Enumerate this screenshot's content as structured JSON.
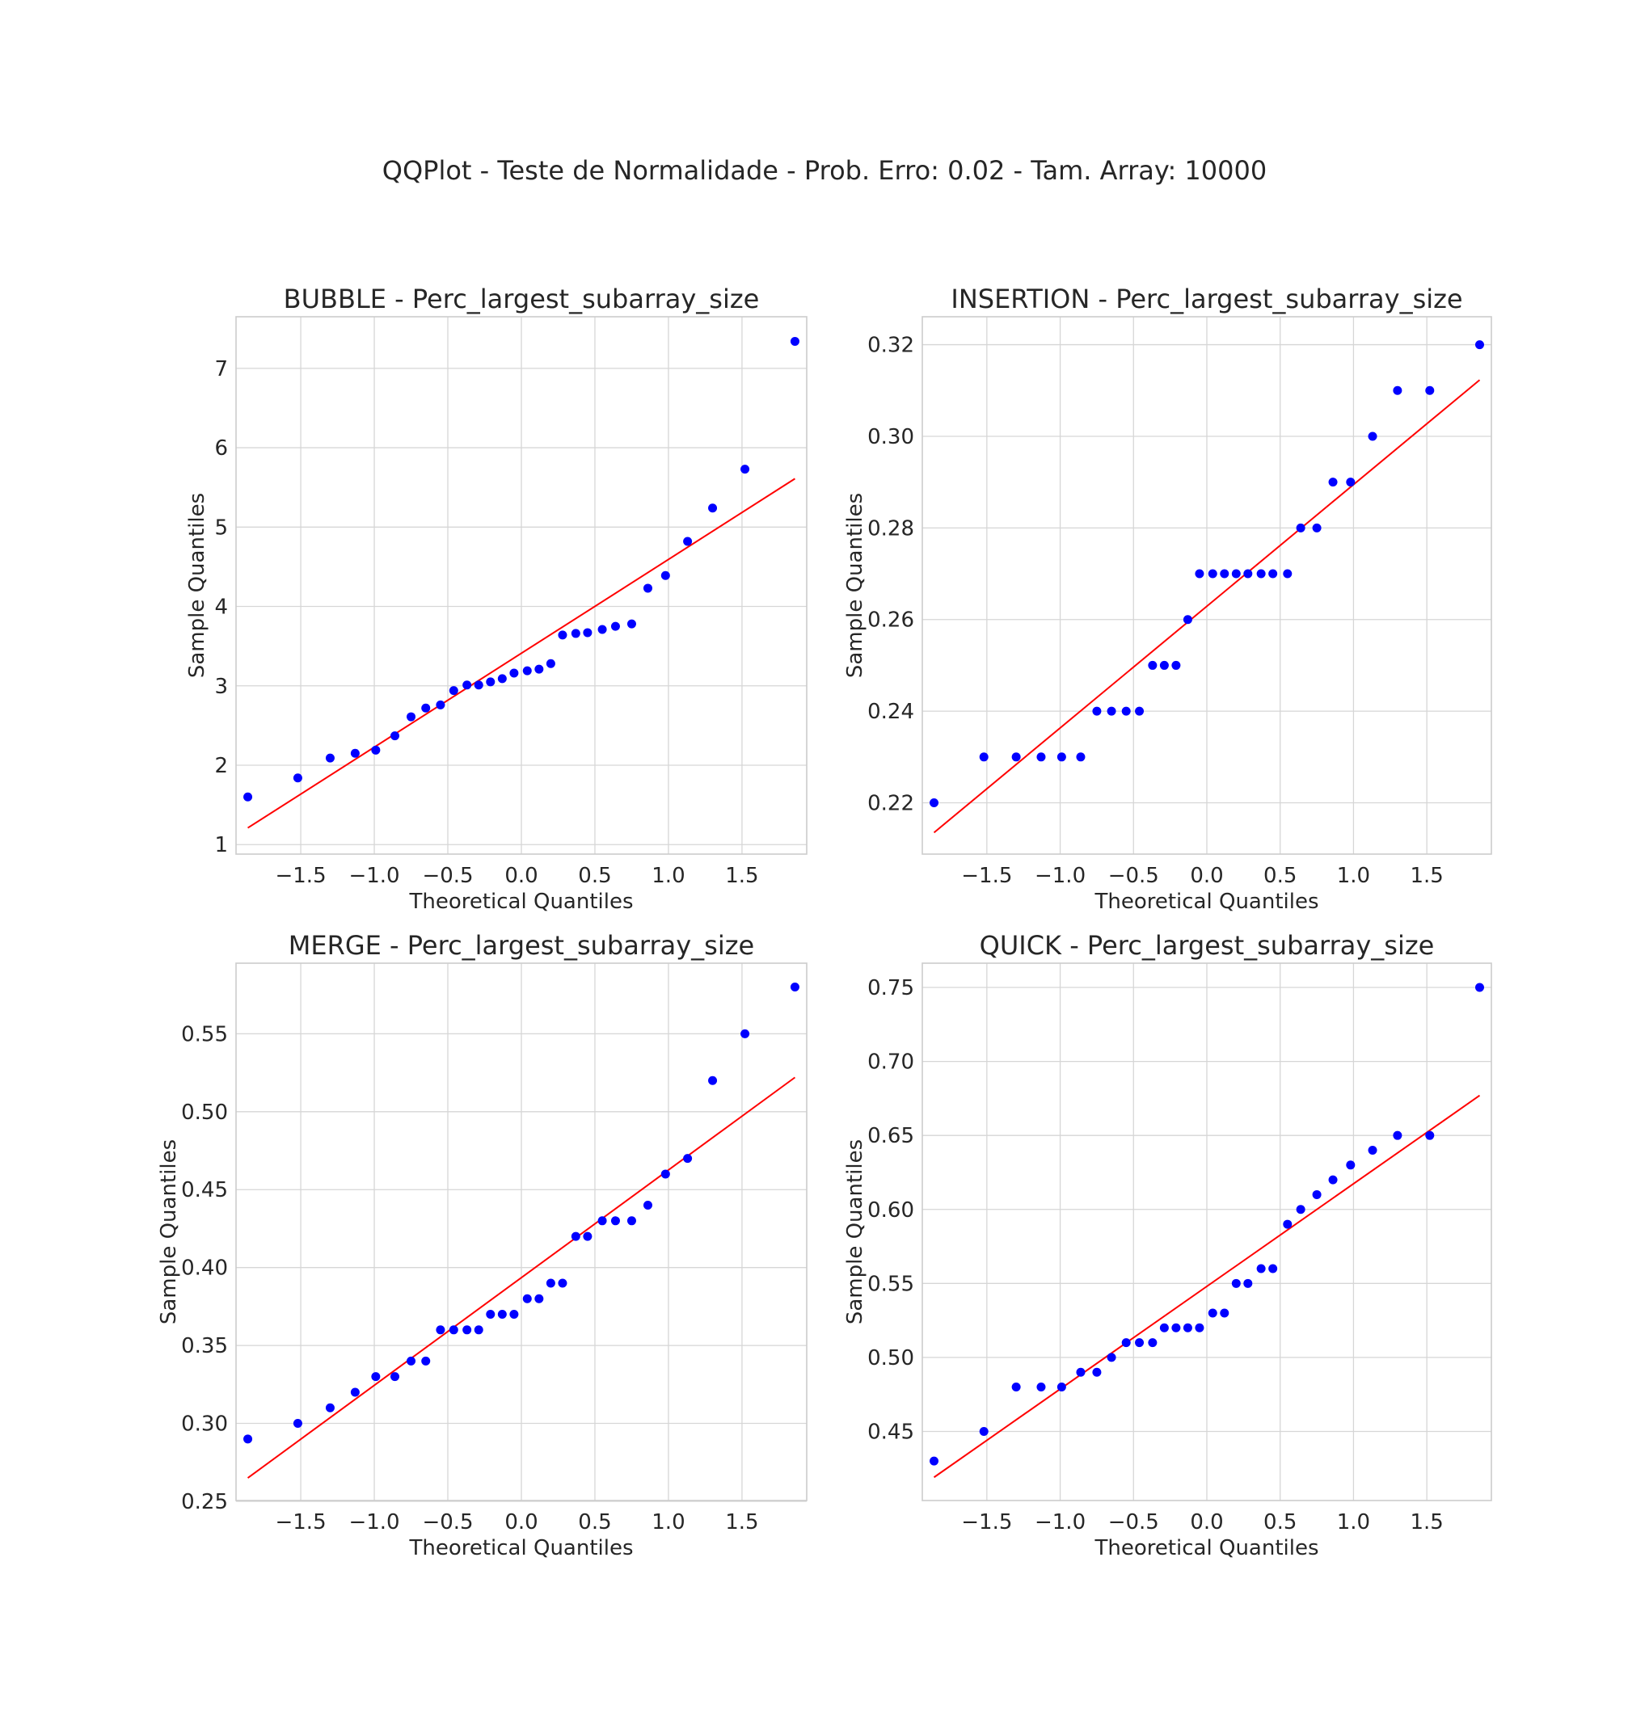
{
  "figure": {
    "title": "QQPlot - Teste de Normalidade - Prob. Erro: 0.02 - Tam. Array: 10000"
  },
  "colors": {
    "points": "#0000ff",
    "line": "#ff0000",
    "grid": "#d6d6d6",
    "axes": "#cccccc",
    "text": "#262626"
  },
  "chart_data": [
    {
      "type": "scatter",
      "title": "BUBBLE - Perc_largest_subarray_size",
      "xlabel": "Theoretical Quantiles",
      "ylabel": "Sample Quantiles",
      "xlim": [
        -1.94,
        1.94
      ],
      "ylim": [
        0.88,
        7.65
      ],
      "xticks": [
        -1.5,
        -1.0,
        -0.5,
        0.0,
        0.5,
        1.0,
        1.5
      ],
      "xtick_labels": [
        "−1.5",
        "−1.0",
        "−0.5",
        "0.0",
        "0.5",
        "1.0",
        "1.5"
      ],
      "yticks": [
        1,
        2,
        3,
        4,
        5,
        6,
        7
      ],
      "ytick_labels": [
        "1",
        "2",
        "3",
        "4",
        "5",
        "6",
        "7"
      ],
      "grid": true,
      "x": [
        -1.86,
        -1.52,
        -1.3,
        -1.13,
        -0.99,
        -0.86,
        -0.75,
        -0.65,
        -0.55,
        -0.46,
        -0.37,
        -0.29,
        -0.21,
        -0.13,
        -0.05,
        0.04,
        0.12,
        0.2,
        0.28,
        0.37,
        0.45,
        0.55,
        0.64,
        0.75,
        0.86,
        0.98,
        1.13,
        1.3,
        1.52,
        1.86
      ],
      "y": [
        1.6,
        1.84,
        2.09,
        2.15,
        2.19,
        2.37,
        2.61,
        2.72,
        2.76,
        2.94,
        3.01,
        3.01,
        3.05,
        3.09,
        3.16,
        3.19,
        3.21,
        3.28,
        3.64,
        3.66,
        3.67,
        3.71,
        3.75,
        3.78,
        4.23,
        4.39,
        4.82,
        5.24,
        5.73,
        7.34
      ],
      "fit_line": {
        "x": [
          -1.86,
          1.86
        ],
        "y": [
          1.21,
          5.61
        ]
      }
    },
    {
      "type": "scatter",
      "title": "INSERTION - Perc_largest_subarray_size",
      "xlabel": "Theoretical Quantiles",
      "ylabel": "Sample Quantiles",
      "xlim": [
        -1.94,
        1.94
      ],
      "ylim": [
        0.2088,
        0.3261
      ],
      "xticks": [
        -1.5,
        -1.0,
        -0.5,
        0.0,
        0.5,
        1.0,
        1.5
      ],
      "xtick_labels": [
        "−1.5",
        "−1.0",
        "−0.5",
        "0.0",
        "0.5",
        "1.0",
        "1.5"
      ],
      "yticks": [
        0.22,
        0.24,
        0.26,
        0.28,
        0.3,
        0.32
      ],
      "ytick_labels": [
        "0.22",
        "0.24",
        "0.26",
        "0.28",
        "0.30",
        "0.32"
      ],
      "grid": true,
      "x": [
        -1.86,
        -1.52,
        -1.3,
        -1.13,
        -0.99,
        -0.86,
        -0.75,
        -0.65,
        -0.55,
        -0.46,
        -0.37,
        -0.29,
        -0.21,
        -0.13,
        -0.05,
        0.04,
        0.12,
        0.2,
        0.28,
        0.37,
        0.45,
        0.55,
        0.64,
        0.75,
        0.86,
        0.98,
        1.13,
        1.3,
        1.52,
        1.86
      ],
      "y": [
        0.22,
        0.23,
        0.23,
        0.23,
        0.23,
        0.23,
        0.24,
        0.24,
        0.24,
        0.24,
        0.25,
        0.25,
        0.25,
        0.26,
        0.27,
        0.27,
        0.27,
        0.27,
        0.27,
        0.27,
        0.27,
        0.27,
        0.28,
        0.28,
        0.29,
        0.29,
        0.3,
        0.31,
        0.31,
        0.32
      ],
      "fit_line": {
        "x": [
          -1.86,
          1.86
        ],
        "y": [
          0.2135,
          0.3123
        ]
      }
    },
    {
      "type": "scatter",
      "title": "MERGE - Perc_largest_subarray_size",
      "xlabel": "Theoretical Quantiles",
      "ylabel": "Sample Quantiles",
      "xlim": [
        -1.94,
        1.94
      ],
      "ylim": [
        0.2505,
        0.5953
      ],
      "xticks": [
        -1.5,
        -1.0,
        -0.5,
        0.0,
        0.5,
        1.0,
        1.5
      ],
      "xtick_labels": [
        "−1.5",
        "−1.0",
        "−0.5",
        "0.0",
        "0.5",
        "1.0",
        "1.5"
      ],
      "yticks": [
        0.25,
        0.3,
        0.35,
        0.4,
        0.45,
        0.5,
        0.55
      ],
      "ytick_labels": [
        "0.25",
        "0.30",
        "0.35",
        "0.40",
        "0.45",
        "0.50",
        "0.55"
      ],
      "grid": true,
      "x": [
        -1.86,
        -1.52,
        -1.3,
        -1.13,
        -0.99,
        -0.86,
        -0.75,
        -0.65,
        -0.55,
        -0.46,
        -0.37,
        -0.29,
        -0.21,
        -0.13,
        -0.05,
        0.04,
        0.12,
        0.2,
        0.28,
        0.37,
        0.45,
        0.55,
        0.64,
        0.75,
        0.86,
        0.98,
        1.13,
        1.3,
        1.52,
        1.86
      ],
      "y": [
        0.29,
        0.3,
        0.31,
        0.32,
        0.33,
        0.33,
        0.34,
        0.34,
        0.36,
        0.36,
        0.36,
        0.36,
        0.37,
        0.37,
        0.37,
        0.38,
        0.38,
        0.39,
        0.39,
        0.42,
        0.42,
        0.43,
        0.43,
        0.43,
        0.44,
        0.46,
        0.47,
        0.52,
        0.55,
        0.58
      ],
      "fit_line": {
        "x": [
          -1.86,
          1.86
        ],
        "y": [
          0.265,
          0.522
        ]
      }
    },
    {
      "type": "scatter",
      "title": "QUICK - Perc_largest_subarray_size",
      "xlabel": "Theoretical Quantiles",
      "ylabel": "Sample Quantiles",
      "xlim": [
        -1.94,
        1.94
      ],
      "ylim": [
        0.4033,
        0.7664
      ],
      "xticks": [
        -1.5,
        -1.0,
        -0.5,
        0.0,
        0.5,
        1.0,
        1.5
      ],
      "xtick_labels": [
        "−1.5",
        "−1.0",
        "−0.5",
        "0.0",
        "0.5",
        "1.0",
        "1.5"
      ],
      "yticks": [
        0.45,
        0.5,
        0.55,
        0.6,
        0.65,
        0.7,
        0.75
      ],
      "ytick_labels": [
        "0.45",
        "0.50",
        "0.55",
        "0.60",
        "0.65",
        "0.70",
        "0.75"
      ],
      "grid": true,
      "x": [
        -1.86,
        -1.52,
        -1.3,
        -1.13,
        -0.99,
        -0.86,
        -0.75,
        -0.65,
        -0.55,
        -0.46,
        -0.37,
        -0.29,
        -0.21,
        -0.13,
        -0.05,
        0.04,
        0.12,
        0.2,
        0.28,
        0.37,
        0.45,
        0.55,
        0.64,
        0.75,
        0.86,
        0.98,
        1.13,
        1.3,
        1.52,
        1.86
      ],
      "y": [
        0.43,
        0.45,
        0.48,
        0.48,
        0.48,
        0.49,
        0.49,
        0.5,
        0.51,
        0.51,
        0.51,
        0.52,
        0.52,
        0.52,
        0.52,
        0.53,
        0.53,
        0.55,
        0.55,
        0.56,
        0.56,
        0.59,
        0.6,
        0.61,
        0.62,
        0.63,
        0.64,
        0.65,
        0.65,
        0.75
      ],
      "fit_line": {
        "x": [
          -1.86,
          1.86
        ],
        "y": [
          0.419,
          0.677
        ]
      }
    }
  ]
}
